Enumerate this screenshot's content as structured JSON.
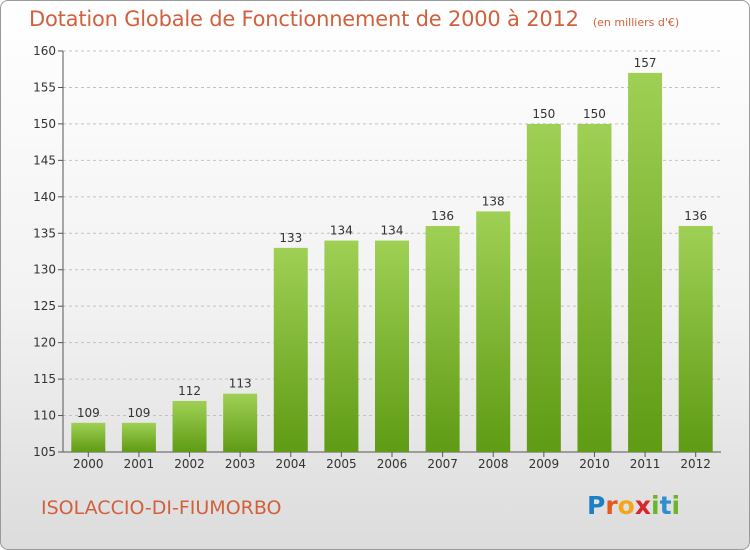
{
  "chart_data": {
    "type": "bar",
    "title": "Dotation Globale de Fonctionnement de 2000 à 2012",
    "subtitle": "(en milliers d'€)",
    "categories": [
      "2000",
      "2001",
      "2002",
      "2003",
      "2004",
      "2005",
      "2006",
      "2007",
      "2008",
      "2009",
      "2010",
      "2011",
      "2012"
    ],
    "values": [
      109,
      109,
      112,
      113,
      133,
      134,
      134,
      136,
      138,
      150,
      150,
      157,
      136
    ],
    "value_labels": [
      "109",
      "109",
      "112",
      "113",
      "133",
      "134",
      "134",
      "136",
      "138",
      "150",
      "150",
      "157",
      "136"
    ],
    "ylim": [
      105,
      160
    ],
    "yticks": [
      105,
      110,
      115,
      120,
      125,
      130,
      135,
      140,
      145,
      150,
      155,
      160
    ],
    "ytick_labels": [
      "105",
      "110",
      "115",
      "120",
      "125",
      "130",
      "135",
      "140",
      "145",
      "150",
      "155",
      "160"
    ],
    "grid": true,
    "bar_color_top": "#9fd055",
    "bar_color_bottom": "#5f9b14",
    "grid_color": "#c2c2c2"
  },
  "footer": {
    "commune": "ISOLACCIO-DI-FIUMORBO",
    "logo_letters": [
      "P",
      "r",
      "o",
      "x",
      "i",
      "t",
      "i"
    ],
    "logo_colors": [
      "#1f7fc4",
      "#e55a1c",
      "#f3a51b",
      "#d8262a",
      "#6bb52d",
      "#2d8fd0",
      "#6bb52d"
    ]
  },
  "colors": {
    "title": "#d1603d"
  }
}
